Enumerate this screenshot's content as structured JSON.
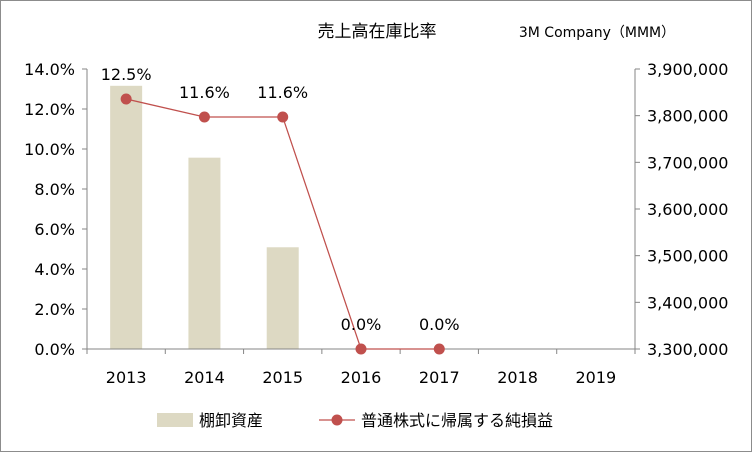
{
  "chart_data": {
    "type": "bar+line",
    "title": "売上高在庫比率",
    "subtitle": "3M Company（MMM）",
    "categories": [
      "2013",
      "2014",
      "2015",
      "2016",
      "2017",
      "2018",
      "2019"
    ],
    "series": [
      {
        "name": "棚卸資産",
        "type": "bar",
        "axis": "right",
        "values": [
          3864000,
          3710000,
          3518000,
          null,
          null,
          null,
          null
        ],
        "color": "#ddd9c3"
      },
      {
        "name": "普通株式に帰属する純損益",
        "type": "line",
        "axis": "left",
        "values": [
          0.125,
          0.116,
          0.116,
          0.0,
          0.0,
          null,
          null
        ],
        "data_labels": [
          "12.5%",
          "11.6%",
          "11.6%",
          "0.0%",
          "0.0%",
          "",
          ""
        ],
        "color": "#c0504d"
      }
    ],
    "left_axis": {
      "ylim": [
        0,
        0.14
      ],
      "ticks": [
        0,
        0.02,
        0.04,
        0.06,
        0.08,
        0.1,
        0.12,
        0.14
      ],
      "tick_labels": [
        "0.0%",
        "2.0%",
        "4.0%",
        "6.0%",
        "8.0%",
        "10.0%",
        "12.0%",
        "14.0%"
      ]
    },
    "right_axis": {
      "ylim": [
        3300000,
        3900000
      ],
      "ticks": [
        3300000,
        3400000,
        3500000,
        3600000,
        3700000,
        3800000,
        3900000
      ],
      "tick_labels": [
        "3,300,000",
        "3,400,000",
        "3,500,000",
        "3,600,000",
        "3,700,000",
        "3,800,000",
        "3,900,000"
      ]
    },
    "grid": false,
    "legend_position": "bottom"
  }
}
